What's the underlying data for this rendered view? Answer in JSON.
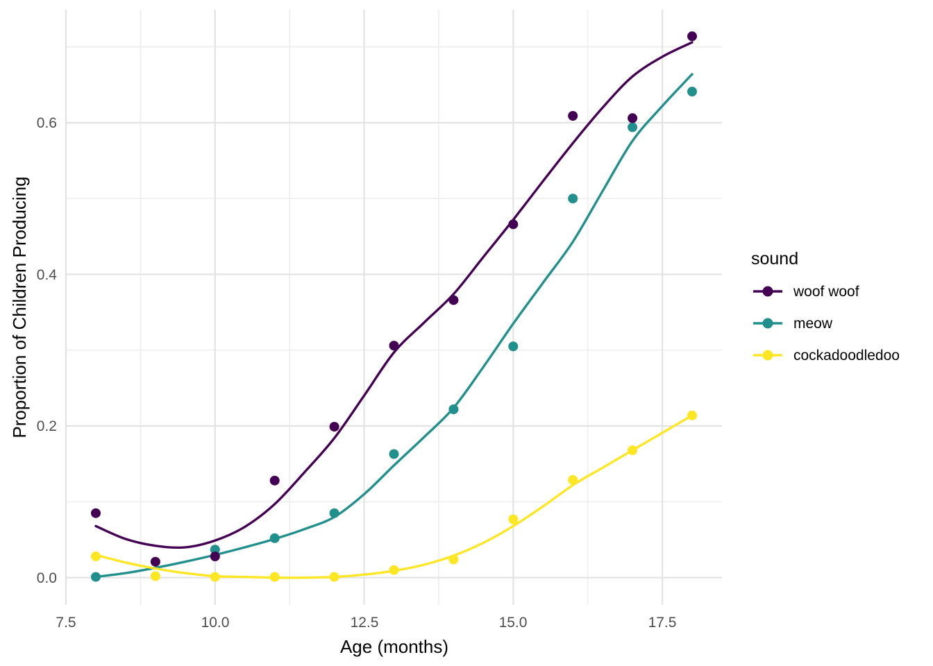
{
  "chart_data": {
    "type": "scatter",
    "title": "",
    "xlabel": "Age (months)",
    "ylabel": "Proportion of Children Producing",
    "xlim": [
      7.5,
      18.5
    ],
    "ylim": [
      -0.036,
      0.749
    ],
    "x_ticks": [
      7.5,
      10.0,
      12.5,
      15.0,
      17.5
    ],
    "x_tick_labels": [
      "7.5",
      "10.0",
      "12.5",
      "15.0",
      "17.5"
    ],
    "x_minor_ticks": [
      8.75,
      11.25,
      13.75,
      16.25
    ],
    "y_ticks": [
      0.0,
      0.2,
      0.4,
      0.6
    ],
    "y_tick_labels": [
      "0.0",
      "0.2",
      "0.4",
      "0.6"
    ],
    "y_minor_ticks": [
      0.1,
      0.3,
      0.5,
      0.7
    ],
    "grid": "major+minor",
    "legend_position": "right",
    "legend_title": "sound",
    "series": [
      {
        "name": "woof woof",
        "color": "#440154",
        "points": [
          [
            8,
            0.085
          ],
          [
            9,
            0.021
          ],
          [
            10,
            0.028
          ],
          [
            11,
            0.128
          ],
          [
            12,
            0.199
          ],
          [
            13,
            0.306
          ],
          [
            14,
            0.366
          ],
          [
            15,
            0.466
          ],
          [
            16,
            0.609
          ],
          [
            17,
            0.606
          ],
          [
            18,
            0.714
          ]
        ],
        "smooth_curve": [
          [
            8,
            0.068
          ],
          [
            8.5,
            0.051
          ],
          [
            9,
            0.042
          ],
          [
            9.5,
            0.04
          ],
          [
            10,
            0.049
          ],
          [
            10.5,
            0.067
          ],
          [
            11,
            0.097
          ],
          [
            11.5,
            0.139
          ],
          [
            12,
            0.184
          ],
          [
            12.5,
            0.24
          ],
          [
            13,
            0.297
          ],
          [
            13.5,
            0.336
          ],
          [
            14,
            0.374
          ],
          [
            14.5,
            0.423
          ],
          [
            15,
            0.472
          ],
          [
            15.5,
            0.523
          ],
          [
            16,
            0.573
          ],
          [
            16.5,
            0.62
          ],
          [
            17,
            0.661
          ],
          [
            17.5,
            0.687
          ],
          [
            18,
            0.706
          ]
        ]
      },
      {
        "name": "meow",
        "color": "#21908C",
        "points": [
          [
            8,
            0.001
          ],
          [
            10,
            0.037
          ],
          [
            11,
            0.052
          ],
          [
            12,
            0.085
          ],
          [
            13,
            0.163
          ],
          [
            14,
            0.222
          ],
          [
            15,
            0.305
          ],
          [
            16,
            0.5
          ],
          [
            17,
            0.594
          ],
          [
            18,
            0.641
          ]
        ],
        "smooth_curve": [
          [
            8,
            0.001
          ],
          [
            8.5,
            0.006
          ],
          [
            9,
            0.013
          ],
          [
            9.5,
            0.021
          ],
          [
            10,
            0.03
          ],
          [
            10.5,
            0.04
          ],
          [
            11,
            0.051
          ],
          [
            11.5,
            0.064
          ],
          [
            12,
            0.08
          ],
          [
            12.5,
            0.11
          ],
          [
            13,
            0.148
          ],
          [
            13.5,
            0.185
          ],
          [
            14,
            0.224
          ],
          [
            14.5,
            0.278
          ],
          [
            15,
            0.335
          ],
          [
            15.5,
            0.389
          ],
          [
            16,
            0.443
          ],
          [
            16.5,
            0.51
          ],
          [
            17,
            0.576
          ],
          [
            17.5,
            0.622
          ],
          [
            18,
            0.664
          ]
        ]
      },
      {
        "name": "cockadoodledoo",
        "color": "#FDE725",
        "points": [
          [
            8,
            0.028
          ],
          [
            9,
            0.002
          ],
          [
            10,
            0.001
          ],
          [
            11,
            0.001
          ],
          [
            12,
            0.001
          ],
          [
            13,
            0.01
          ],
          [
            14,
            0.024
          ],
          [
            15,
            0.077
          ],
          [
            16,
            0.129
          ],
          [
            17,
            0.168
          ],
          [
            18,
            0.214
          ]
        ],
        "smooth_curve": [
          [
            8,
            0.03
          ],
          [
            8.5,
            0.02
          ],
          [
            9,
            0.012
          ],
          [
            9.5,
            0.006
          ],
          [
            10,
            0.002
          ],
          [
            10.5,
            0.001
          ],
          [
            11,
            0.0
          ],
          [
            11.5,
            0.0
          ],
          [
            12,
            0.001
          ],
          [
            12.5,
            0.004
          ],
          [
            13,
            0.009
          ],
          [
            13.5,
            0.017
          ],
          [
            14,
            0.029
          ],
          [
            14.5,
            0.046
          ],
          [
            15,
            0.068
          ],
          [
            15.5,
            0.094
          ],
          [
            16,
            0.122
          ],
          [
            16.5,
            0.145
          ],
          [
            17,
            0.168
          ],
          [
            17.5,
            0.191
          ],
          [
            18,
            0.214
          ]
        ]
      }
    ]
  },
  "style": {
    "background": "#FFFFFF",
    "grid_major_color": "#E3E3E3",
    "grid_minor_color": "#EFEFEF",
    "tick_label_color": "#4D4D4D",
    "text_color": "#000000",
    "point_radius": 7,
    "line_width": 3.4
  }
}
